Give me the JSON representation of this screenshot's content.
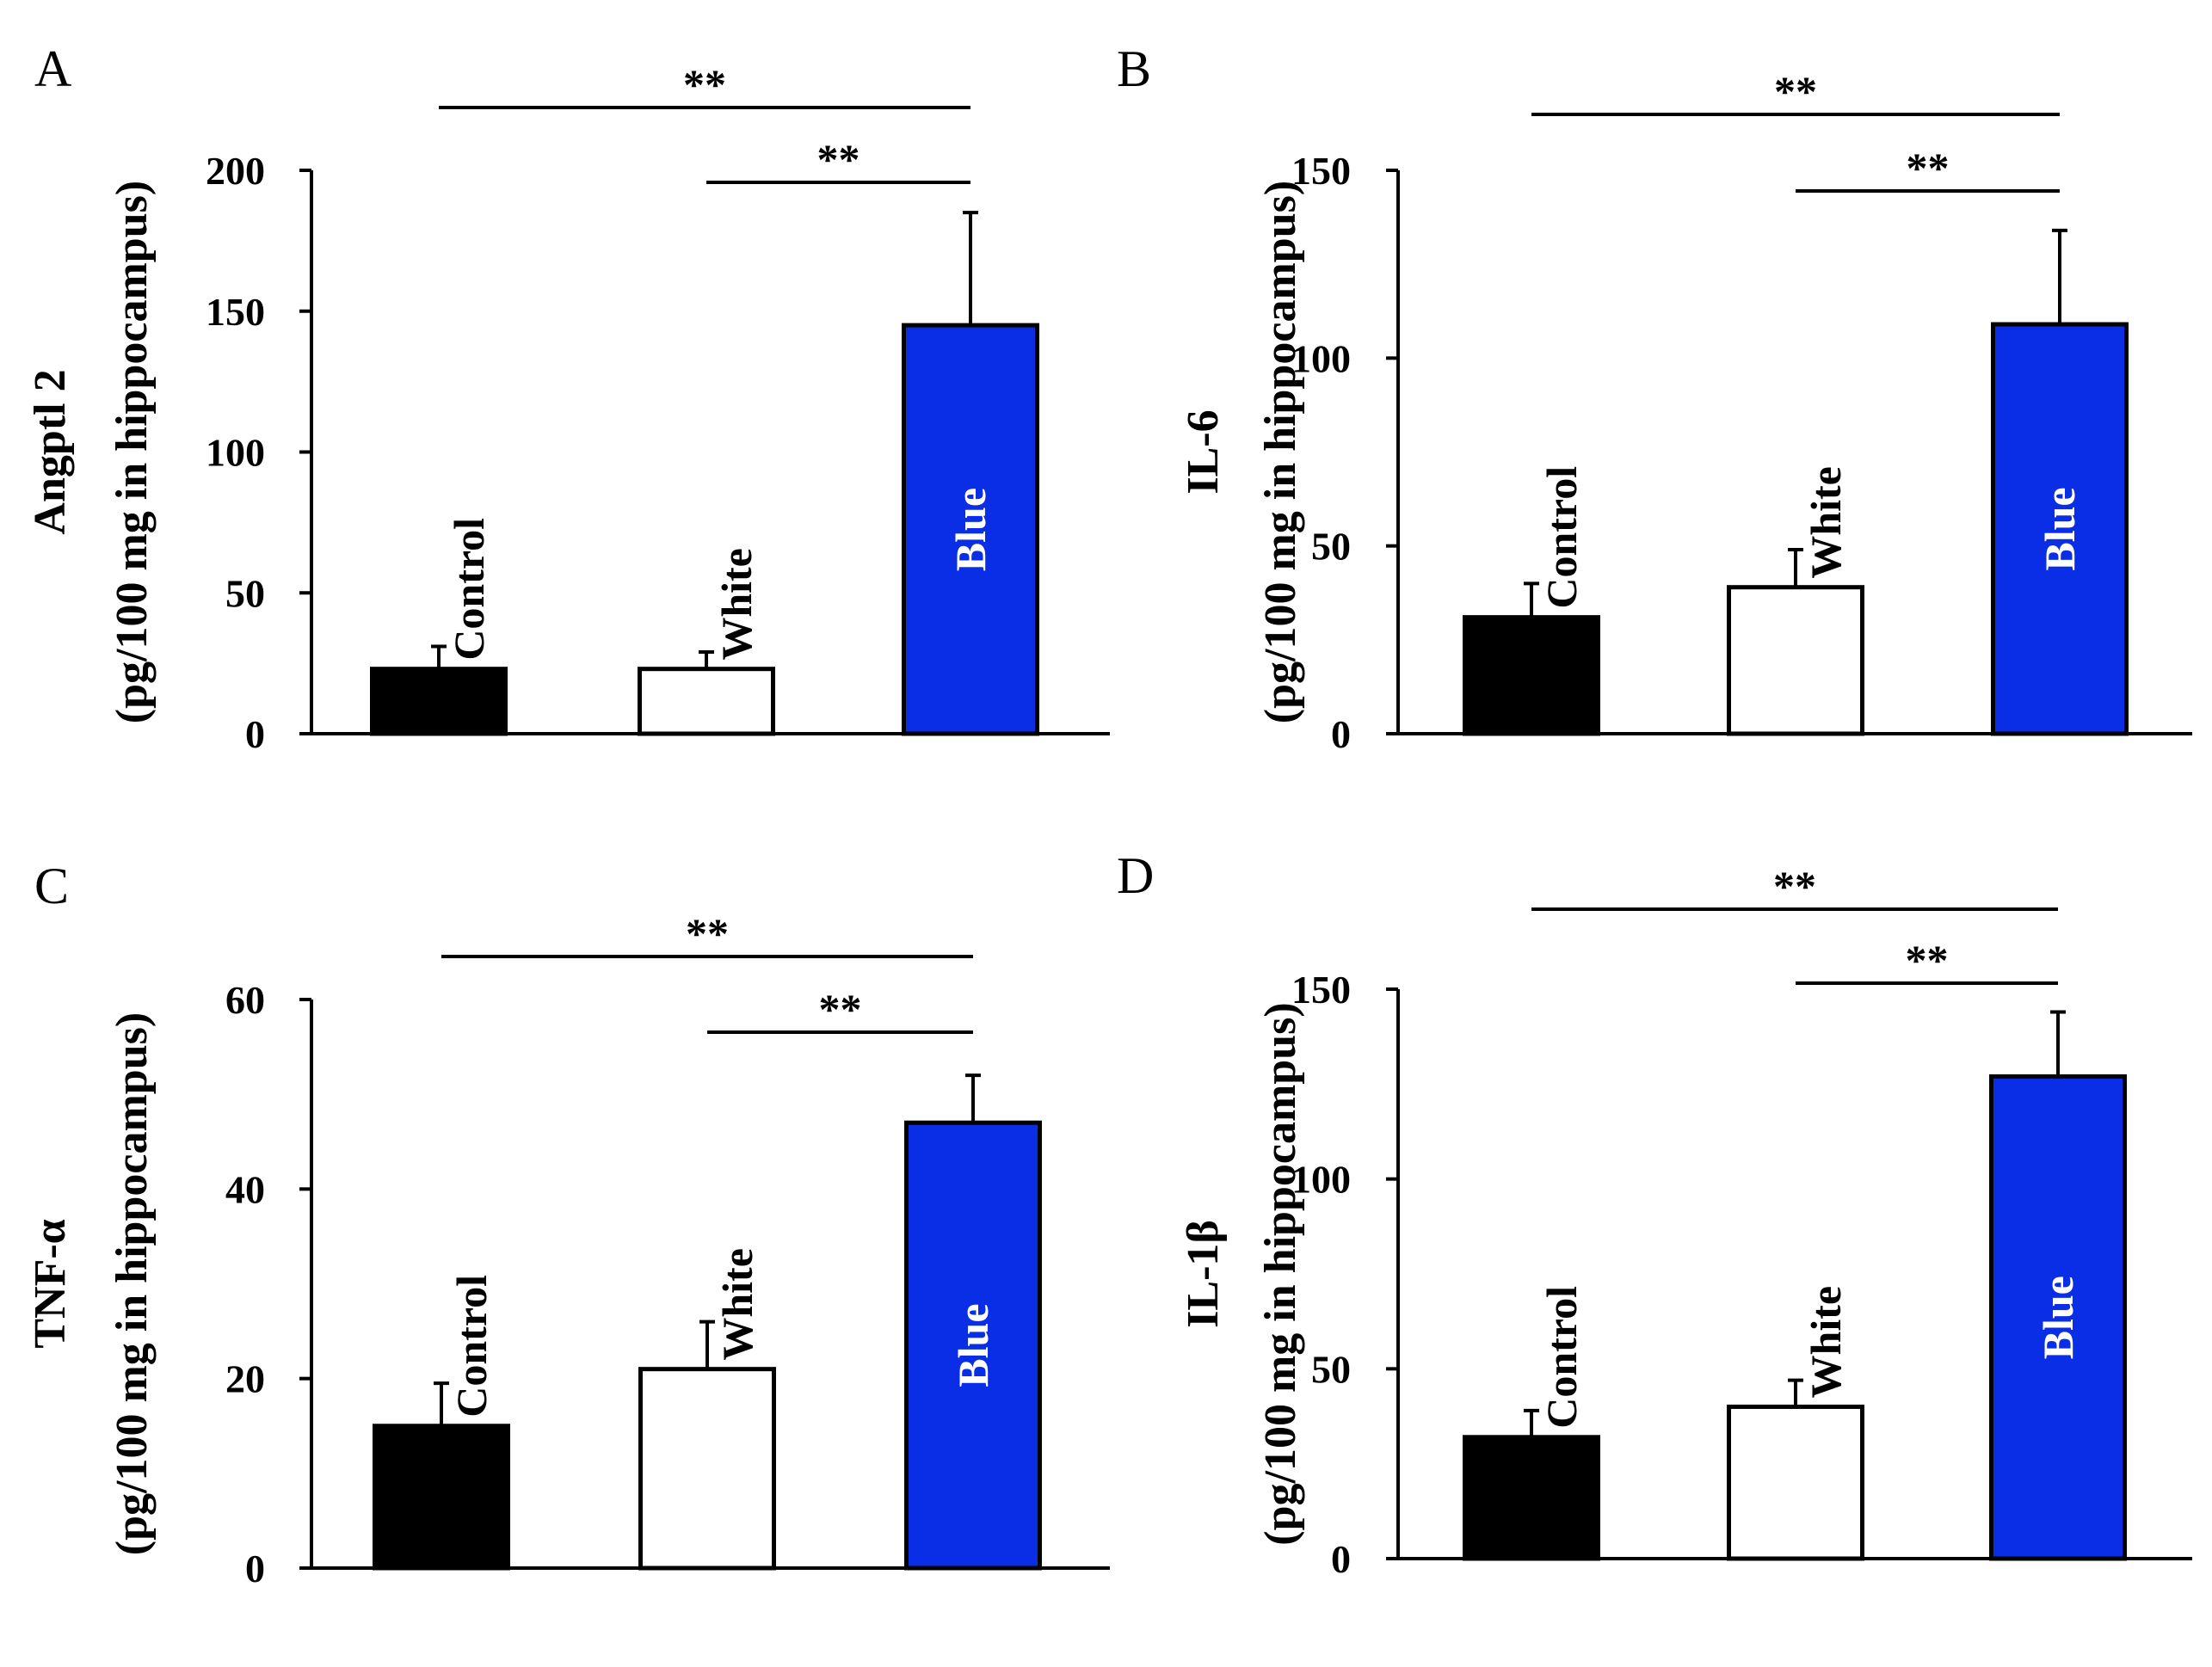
{
  "chart_data": [
    {
      "panel": "A",
      "type": "bar",
      "categories": [
        "Control",
        "White",
        "Blue"
      ],
      "values": [
        23,
        23,
        145
      ],
      "errors": [
        8,
        6,
        40
      ],
      "ylim": [
        0,
        200
      ],
      "yticks": [
        0,
        50,
        100,
        150,
        200
      ],
      "ylabel": [
        "Angptl 2",
        "(pg/100 mg in hippocampus)"
      ],
      "significance": [
        {
          "from": 0,
          "to": 2,
          "label": "**"
        },
        {
          "from": 1,
          "to": 2,
          "label": "**"
        }
      ]
    },
    {
      "panel": "B",
      "type": "bar",
      "categories": [
        "Control",
        "White",
        "Blue"
      ],
      "values": [
        31,
        39,
        109
      ],
      "errors": [
        9,
        10,
        25
      ],
      "ylim": [
        0,
        150
      ],
      "yticks": [
        0,
        50,
        100,
        150
      ],
      "ylabel": [
        "IL-6",
        "(pg/100 mg in hippocampus)"
      ],
      "significance": [
        {
          "from": 0,
          "to": 2,
          "label": "**"
        },
        {
          "from": 1,
          "to": 2,
          "label": "**"
        }
      ]
    },
    {
      "panel": "C",
      "type": "bar",
      "categories": [
        "Control",
        "White",
        "Blue"
      ],
      "values": [
        15,
        21,
        47
      ],
      "errors": [
        4.5,
        5,
        5
      ],
      "ylim": [
        0,
        60
      ],
      "yticks": [
        0,
        20,
        40,
        60
      ],
      "ylabel": [
        "TNF-α",
        "(pg/100 mg in hippocampus)"
      ],
      "significance": [
        {
          "from": 0,
          "to": 2,
          "label": "**"
        },
        {
          "from": 1,
          "to": 2,
          "label": "**"
        }
      ]
    },
    {
      "panel": "D",
      "type": "bar",
      "categories": [
        "Control",
        "White",
        "Blue"
      ],
      "values": [
        32,
        40,
        127
      ],
      "errors": [
        7,
        7,
        17
      ],
      "ylim": [
        0,
        150
      ],
      "yticks": [
        0,
        50,
        100,
        150
      ],
      "ylabel": [
        "IL-1β",
        "(pg/100 mg in hippocampus)"
      ],
      "significance": [
        {
          "from": 0,
          "to": 2,
          "label": "**"
        },
        {
          "from": 1,
          "to": 2,
          "label": "**"
        }
      ]
    }
  ],
  "colors": {
    "control_fill": "#000000",
    "white_fill": "#ffffff",
    "blue_fill": "#0a2ee6",
    "axis": "#000000",
    "blue_label": "#ffffff",
    "dark_label": "#000000"
  }
}
